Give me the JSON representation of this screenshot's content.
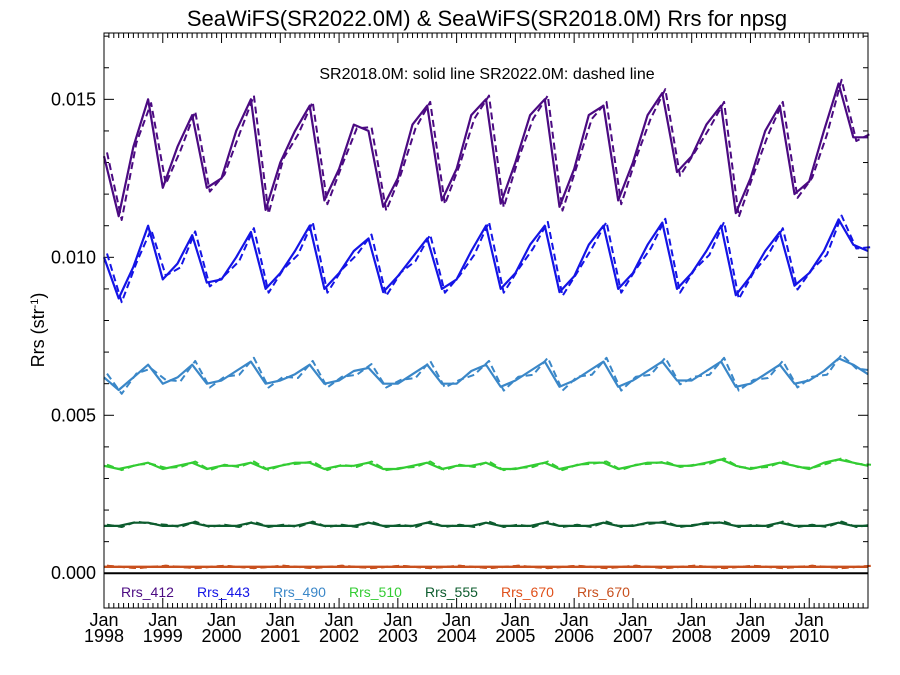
{
  "chart_data": {
    "type": "line",
    "title": "SeaWiFS(SR2022.0M) & SeaWiFS(SR2018.0M)  Rrs for npsg",
    "annotation": "SR2018.0M: solid line   SR2022.0M: dashed line",
    "ylabel": "Rrs (str",
    "ylabel_sup": "-1",
    "ylabel_close": ")",
    "xlabel": "",
    "xlim": [
      1998.0,
      2011.0
    ],
    "ylim": [
      -0.0011,
      0.0171
    ],
    "yticks": [
      0.0,
      0.005,
      0.01,
      0.015
    ],
    "ytick_labels": [
      "0.000",
      "0.005",
      "0.010",
      "0.015"
    ],
    "xticks": [
      1998,
      1999,
      2000,
      2001,
      2002,
      2003,
      2004,
      2005,
      2006,
      2007,
      2008,
      2009,
      2010
    ],
    "xtick_month_label": "Jan",
    "xtick_year_labels": [
      "1998",
      "1999",
      "2000",
      "2001",
      "2002",
      "2003",
      "2004",
      "2005",
      "2006",
      "2007",
      "2008",
      "2009",
      "2010"
    ],
    "grid": false,
    "legend_position": "bottom, inside plot",
    "series": [
      {
        "name": "Rrs_412",
        "color": "#4b0a82",
        "x": [
          1998.0,
          1998.25,
          1998.5,
          1998.75,
          1999.0,
          1999.25,
          1999.5,
          1999.75,
          2000.0,
          2000.25,
          2000.5,
          2000.75,
          2001.0,
          2001.25,
          2001.5,
          2001.75,
          2002.0,
          2002.25,
          2002.5,
          2002.75,
          2003.0,
          2003.25,
          2003.5,
          2003.75,
          2004.0,
          2004.25,
          2004.5,
          2004.75,
          2005.0,
          2005.25,
          2005.5,
          2005.75,
          2006.0,
          2006.25,
          2006.5,
          2006.75,
          2007.0,
          2007.25,
          2007.5,
          2007.75,
          2008.0,
          2008.25,
          2008.5,
          2008.75,
          2009.0,
          2009.25,
          2009.5,
          2009.75,
          2010.0,
          2010.25,
          2010.5,
          2010.75,
          2011.0
        ],
        "y": [
          0.0132,
          0.0113,
          0.0135,
          0.015,
          0.0122,
          0.0135,
          0.0145,
          0.0122,
          0.0125,
          0.014,
          0.015,
          0.0115,
          0.013,
          0.014,
          0.0148,
          0.0118,
          0.0128,
          0.0142,
          0.014,
          0.0116,
          0.0125,
          0.0142,
          0.0148,
          0.0118,
          0.0128,
          0.0145,
          0.015,
          0.0117,
          0.013,
          0.0145,
          0.015,
          0.0116,
          0.0128,
          0.0145,
          0.0148,
          0.0118,
          0.013,
          0.0145,
          0.0152,
          0.0127,
          0.0132,
          0.0142,
          0.0148,
          0.0114,
          0.0125,
          0.014,
          0.0148,
          0.012,
          0.0124,
          0.014,
          0.0155,
          0.0138,
          0.0138
        ]
      },
      {
        "name": "Rrs_443",
        "color": "#1414e6",
        "x": [
          1998.0,
          1998.25,
          1998.5,
          1998.75,
          1999.0,
          1999.25,
          1999.5,
          1999.75,
          2000.0,
          2000.25,
          2000.5,
          2000.75,
          2001.0,
          2001.25,
          2001.5,
          2001.75,
          2002.0,
          2002.25,
          2002.5,
          2002.75,
          2003.0,
          2003.25,
          2003.5,
          2003.75,
          2004.0,
          2004.25,
          2004.5,
          2004.75,
          2005.0,
          2005.25,
          2005.5,
          2005.75,
          2006.0,
          2006.25,
          2006.5,
          2006.75,
          2007.0,
          2007.25,
          2007.5,
          2007.75,
          2008.0,
          2008.25,
          2008.5,
          2008.75,
          2009.0,
          2009.25,
          2009.5,
          2009.75,
          2010.0,
          2010.25,
          2010.5,
          2010.75,
          2011.0
        ],
        "y": [
          0.01,
          0.0087,
          0.0097,
          0.011,
          0.0093,
          0.0098,
          0.0107,
          0.0092,
          0.0093,
          0.01,
          0.0108,
          0.009,
          0.0095,
          0.0102,
          0.011,
          0.009,
          0.0095,
          0.0102,
          0.0106,
          0.0089,
          0.0094,
          0.01,
          0.0106,
          0.009,
          0.0093,
          0.0102,
          0.011,
          0.009,
          0.0095,
          0.0104,
          0.011,
          0.0089,
          0.0094,
          0.0104,
          0.011,
          0.009,
          0.0095,
          0.0104,
          0.0111,
          0.009,
          0.0095,
          0.0102,
          0.011,
          0.0088,
          0.0094,
          0.0102,
          0.0108,
          0.0091,
          0.0095,
          0.0102,
          0.0112,
          0.0104,
          0.0102
        ]
      },
      {
        "name": "Rrs_490",
        "color": "#3a87c8",
        "x": [
          1998.0,
          1998.25,
          1998.5,
          1998.75,
          1999.0,
          1999.25,
          1999.5,
          1999.75,
          2000.0,
          2000.25,
          2000.5,
          2000.75,
          2001.0,
          2001.25,
          2001.5,
          2001.75,
          2002.0,
          2002.25,
          2002.5,
          2002.75,
          2003.0,
          2003.25,
          2003.5,
          2003.75,
          2004.0,
          2004.25,
          2004.5,
          2004.75,
          2005.0,
          2005.25,
          2005.5,
          2005.75,
          2006.0,
          2006.25,
          2006.5,
          2006.75,
          2007.0,
          2007.25,
          2007.5,
          2007.75,
          2008.0,
          2008.25,
          2008.5,
          2008.75,
          2009.0,
          2009.25,
          2009.5,
          2009.75,
          2010.0,
          2010.25,
          2010.5,
          2010.75,
          2011.0
        ],
        "y": [
          0.0062,
          0.0058,
          0.0062,
          0.0066,
          0.006,
          0.0062,
          0.0066,
          0.006,
          0.0061,
          0.0064,
          0.0067,
          0.006,
          0.0061,
          0.0063,
          0.0066,
          0.006,
          0.0061,
          0.0064,
          0.0065,
          0.006,
          0.006,
          0.0063,
          0.0066,
          0.006,
          0.006,
          0.0064,
          0.0066,
          0.0059,
          0.0061,
          0.0064,
          0.0067,
          0.0059,
          0.0061,
          0.0064,
          0.0067,
          0.0059,
          0.0061,
          0.0064,
          0.0067,
          0.0061,
          0.0061,
          0.0064,
          0.0067,
          0.0059,
          0.006,
          0.0063,
          0.0066,
          0.006,
          0.0061,
          0.0064,
          0.0068,
          0.0066,
          0.0063
        ]
      },
      {
        "name": "Rrs_510",
        "color": "#33cc33",
        "x": [
          1998.0,
          1998.25,
          1998.5,
          1998.75,
          1999.0,
          1999.25,
          1999.5,
          1999.75,
          2000.0,
          2000.25,
          2000.5,
          2000.75,
          2001.0,
          2001.25,
          2001.5,
          2001.75,
          2002.0,
          2002.25,
          2002.5,
          2002.75,
          2003.0,
          2003.25,
          2003.5,
          2003.75,
          2004.0,
          2004.25,
          2004.5,
          2004.75,
          2005.0,
          2005.25,
          2005.5,
          2005.75,
          2006.0,
          2006.25,
          2006.5,
          2006.75,
          2007.0,
          2007.25,
          2007.5,
          2007.75,
          2008.0,
          2008.25,
          2008.5,
          2008.75,
          2009.0,
          2009.25,
          2009.5,
          2009.75,
          2010.0,
          2010.25,
          2010.5,
          2010.75,
          2011.0
        ],
        "y": [
          0.0034,
          0.0033,
          0.0034,
          0.0035,
          0.0033,
          0.0034,
          0.0035,
          0.0033,
          0.0034,
          0.0034,
          0.0035,
          0.0033,
          0.0034,
          0.0035,
          0.0035,
          0.0033,
          0.0034,
          0.0034,
          0.0035,
          0.0033,
          0.0033,
          0.0034,
          0.0035,
          0.0033,
          0.0034,
          0.0034,
          0.0035,
          0.0033,
          0.0033,
          0.0034,
          0.0035,
          0.0033,
          0.0034,
          0.0035,
          0.0035,
          0.0033,
          0.0034,
          0.0035,
          0.0035,
          0.0034,
          0.0034,
          0.0035,
          0.0036,
          0.0034,
          0.0033,
          0.0034,
          0.0035,
          0.0034,
          0.0033,
          0.0035,
          0.0036,
          0.0035,
          0.0034
        ]
      },
      {
        "name": "Rrs_555",
        "color": "#0d5c2e",
        "x": [
          1998.0,
          1998.25,
          1998.5,
          1998.75,
          1999.0,
          1999.25,
          1999.5,
          1999.75,
          2000.0,
          2000.25,
          2000.5,
          2000.75,
          2001.0,
          2001.25,
          2001.5,
          2001.75,
          2002.0,
          2002.25,
          2002.5,
          2002.75,
          2003.0,
          2003.25,
          2003.5,
          2003.75,
          2004.0,
          2004.25,
          2004.5,
          2004.75,
          2005.0,
          2005.25,
          2005.5,
          2005.75,
          2006.0,
          2006.25,
          2006.5,
          2006.75,
          2007.0,
          2007.25,
          2007.5,
          2007.75,
          2008.0,
          2008.25,
          2008.5,
          2008.75,
          2009.0,
          2009.25,
          2009.5,
          2009.75,
          2010.0,
          2010.25,
          2010.5,
          2010.75,
          2011.0
        ],
        "y": [
          0.0015,
          0.0015,
          0.0016,
          0.0016,
          0.0015,
          0.0015,
          0.0016,
          0.0015,
          0.0015,
          0.0015,
          0.0016,
          0.0015,
          0.0015,
          0.0015,
          0.0016,
          0.0015,
          0.0015,
          0.0015,
          0.0016,
          0.0015,
          0.0015,
          0.0015,
          0.0016,
          0.0015,
          0.0015,
          0.0015,
          0.0016,
          0.0015,
          0.0015,
          0.0015,
          0.0016,
          0.0015,
          0.0015,
          0.0015,
          0.0016,
          0.0015,
          0.0015,
          0.0016,
          0.0016,
          0.0015,
          0.0015,
          0.0016,
          0.0016,
          0.0015,
          0.0015,
          0.0015,
          0.0016,
          0.0015,
          0.0015,
          0.0015,
          0.0016,
          0.0015,
          0.0015
        ]
      },
      {
        "name": "Rrs_670",
        "color": "#e0501a",
        "x": [
          1998.0,
          1998.5,
          1999.0,
          1999.5,
          2000.0,
          2000.5,
          2001.0,
          2001.5,
          2002.0,
          2002.5,
          2003.0,
          2003.5,
          2004.0,
          2004.5,
          2005.0,
          2005.5,
          2006.0,
          2006.5,
          2007.0,
          2007.5,
          2008.0,
          2008.5,
          2009.0,
          2009.5,
          2010.0,
          2010.5,
          2011.0
        ],
        "y": [
          0.0002,
          0.0002,
          0.0002,
          0.0002,
          0.0002,
          0.0002,
          0.0002,
          0.0002,
          0.0002,
          0.0002,
          0.0002,
          0.0002,
          0.0002,
          0.0002,
          0.0002,
          0.0002,
          0.0002,
          0.0002,
          0.0002,
          0.0002,
          0.0002,
          0.0002,
          0.0002,
          0.0002,
          0.0002,
          0.0002,
          0.0002
        ]
      },
      {
        "name": "Rrs_670",
        "color": "#c8501e",
        "x": [
          1998.0,
          1998.5,
          1999.0,
          1999.5,
          2000.0,
          2000.5,
          2001.0,
          2001.5,
          2002.0,
          2002.5,
          2003.0,
          2003.5,
          2004.0,
          2004.5,
          2005.0,
          2005.5,
          2006.0,
          2006.5,
          2007.0,
          2007.5,
          2008.0,
          2008.5,
          2009.0,
          2009.5,
          2010.0,
          2010.5,
          2011.0
        ],
        "y": [
          0.0002,
          0.0002,
          0.0002,
          0.0002,
          0.0002,
          0.0002,
          0.0002,
          0.0002,
          0.0002,
          0.0002,
          0.0002,
          0.0002,
          0.0002,
          0.0002,
          0.0002,
          0.0002,
          0.0002,
          0.0002,
          0.0002,
          0.0002,
          0.0002,
          0.0002,
          0.0002,
          0.0002,
          0.0002,
          0.0002,
          0.0002
        ]
      }
    ]
  }
}
